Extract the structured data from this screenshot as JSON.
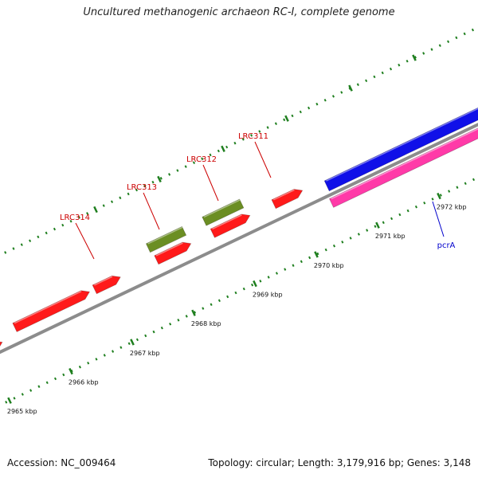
{
  "title": "Uncultured methanogenic archaeon RC-I, complete genome",
  "footer": {
    "accession": "Accession: NC_009464",
    "summary": "Topology: circular; Length: 3,179,916 bp; Genes: 3,148"
  },
  "colors": {
    "backbone": "#8c8c8c",
    "tick": "#1f7f1f",
    "gene_forward": "#ff1a1a",
    "gene_rna": "#6b8e23",
    "gene_blue": "#1010e8",
    "gene_magenta": "#ff3aa8",
    "label_red": "#cc0000",
    "label_blue": "#0000cc"
  },
  "scale_labels": [
    "2965 kbp",
    "2966 kbp",
    "2967 kbp",
    "2968 kbp",
    "2969 kbp",
    "2970 kbp",
    "2971 kbp",
    "2972 kbp"
  ],
  "gene_labels": [
    {
      "name": "LRC314",
      "color": "red"
    },
    {
      "name": "LRC313",
      "color": "red"
    },
    {
      "name": "LRC312",
      "color": "red"
    },
    {
      "name": "LRC311",
      "color": "red"
    },
    {
      "name": "pcrA",
      "color": "blue"
    }
  ]
}
